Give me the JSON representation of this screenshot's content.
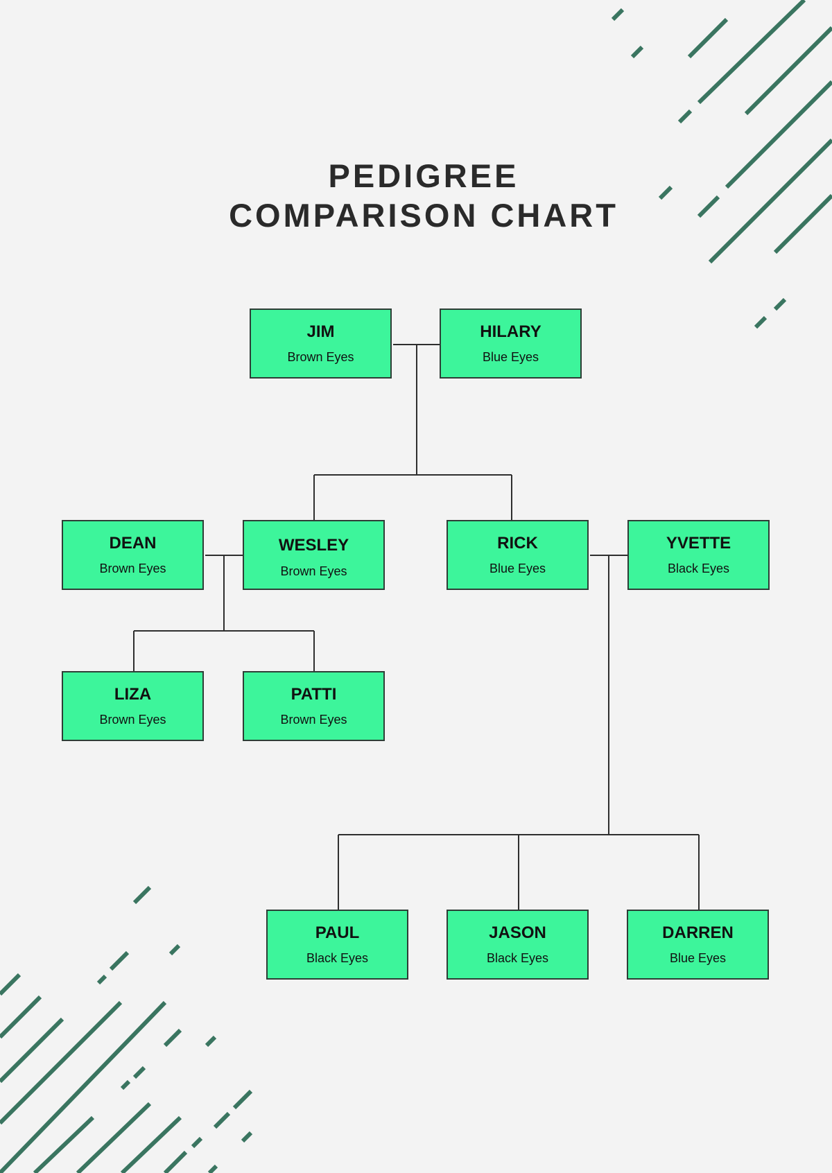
{
  "title": {
    "line1": "PEDIGREE",
    "line2": "COMPARISON CHART"
  },
  "colors": {
    "background": "#f3f3f3",
    "node_fill": "#3df59b",
    "node_border": "#2e3d36",
    "connector": "#2e2e2e",
    "decoration": "#3a7560"
  },
  "people": {
    "jim": {
      "name": "JIM",
      "trait": "Brown Eyes"
    },
    "hilary": {
      "name": "HILARY",
      "trait": "Blue Eyes"
    },
    "dean": {
      "name": "DEAN",
      "trait": "Brown Eyes"
    },
    "wesley": {
      "name": "WESLEY",
      "trait": "Brown Eyes"
    },
    "rick": {
      "name": "RICK",
      "trait": "Blue Eyes"
    },
    "yvette": {
      "name": "YVETTE",
      "trait": "Black Eyes"
    },
    "liza": {
      "name": "LIZA",
      "trait": "Brown Eyes"
    },
    "patti": {
      "name": "PATTI",
      "trait": "Brown Eyes"
    },
    "paul": {
      "name": "PAUL",
      "trait": "Black Eyes"
    },
    "jason": {
      "name": "JASON",
      "trait": "Black Eyes"
    },
    "darren": {
      "name": "DARREN",
      "trait": "Blue Eyes"
    }
  }
}
